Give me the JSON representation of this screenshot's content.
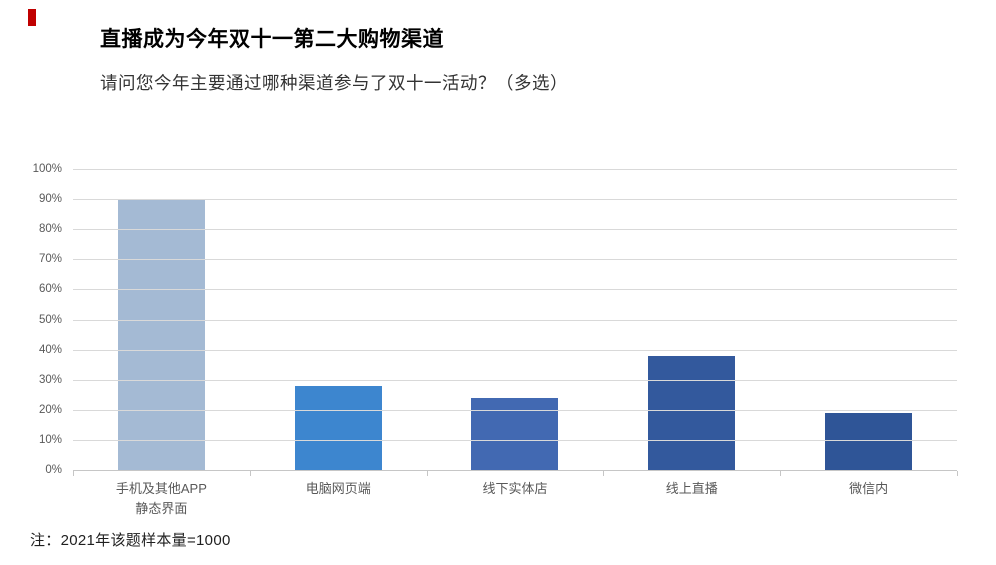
{
  "header": {
    "accent_color": "#C00000"
  },
  "chart_data": {
    "type": "bar",
    "title": "直播成为今年双十一第二大购物渠道",
    "subtitle": "请问您今年主要通过哪种渠道参与了双十一活动？（多选）",
    "categories": [
      [
        "手机及其他APP",
        "静态界面"
      ],
      [
        "电脑网页端"
      ],
      [
        "线下实体店"
      ],
      [
        "线上直播"
      ],
      [
        "微信内"
      ]
    ],
    "values": [
      90,
      28,
      24,
      38,
      19
    ],
    "bar_colors": [
      "#A4BAD4",
      "#3D86CF",
      "#4269B2",
      "#33599D",
      "#2F5597"
    ],
    "ylim": [
      0,
      100
    ],
    "ytick_step": 10,
    "ytick_labels": [
      "100%",
      "90%",
      "80%",
      "70%",
      "60%",
      "50%",
      "40%",
      "30%",
      "20%",
      "10%",
      "0%"
    ],
    "grid": true,
    "legend": "none",
    "note": "注：2021年该题样本量=1000"
  }
}
